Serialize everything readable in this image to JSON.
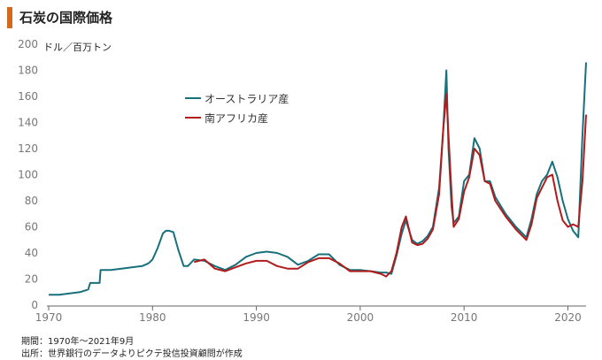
{
  "header": {
    "title": "石炭の国際価格",
    "unit": "ドル／百万トン"
  },
  "legend": [
    {
      "name": "オーストラリア産",
      "color": "#17707a"
    },
    {
      "name": "南アフリカ産",
      "color": "#b31b1b"
    }
  ],
  "footnotes": {
    "period": "期間：1970年～2021年9月",
    "source": "出所：世界銀行のデータよりピクテ投信投資顧問が作成"
  },
  "chart_data": {
    "type": "line",
    "title": "石炭の国際価格",
    "ylabel": "ドル／百万トン",
    "xlim": [
      1970,
      2021.75
    ],
    "ylim": [
      0,
      200
    ],
    "x_ticks": [
      1970,
      1980,
      1990,
      2000,
      2010,
      2020
    ],
    "y_ticks": [
      0,
      20,
      40,
      60,
      80,
      100,
      120,
      140,
      160,
      180,
      200
    ],
    "grid": false,
    "legend_position": "top-center",
    "series": [
      {
        "name": "オーストラリア産",
        "color": "#17707a",
        "x": [
          1970,
          1971,
          1972,
          1973,
          1973.8,
          1974,
          1974.9,
          1975,
          1976,
          1977,
          1978,
          1979,
          1979.6,
          1980,
          1980.5,
          1981,
          1981.3,
          1981.6,
          1982,
          1982.5,
          1983,
          1983.4,
          1984,
          1985,
          1986,
          1987,
          1988,
          1989,
          1990,
          1991,
          1992,
          1993,
          1994,
          1995,
          1996,
          1997,
          1998,
          1999,
          2000,
          2001,
          2002,
          2002.5,
          2003,
          2003.5,
          2004,
          2004.4,
          2005,
          2005.5,
          2006,
          2006.5,
          2007,
          2007.6,
          2008,
          2008.3,
          2008.5,
          2008.8,
          2009,
          2009.5,
          2010,
          2010.5,
          2011,
          2011.5,
          2012,
          2012.5,
          2013,
          2014,
          2015,
          2016,
          2016.5,
          2017,
          2017.5,
          2018,
          2018.5,
          2019,
          2019.5,
          2020,
          2020.5,
          2021,
          2021.4,
          2021.75
        ],
        "values": [
          8,
          8,
          9,
          10,
          12,
          17,
          17,
          27,
          27,
          28,
          29,
          30,
          32,
          35,
          44,
          55,
          57,
          57,
          56,
          42,
          30,
          30,
          35,
          34,
          30,
          27,
          31,
          37,
          40,
          41,
          40,
          37,
          31,
          34,
          39,
          39,
          31,
          27,
          27,
          26,
          25,
          25,
          24,
          38,
          55,
          65,
          50,
          47,
          49,
          53,
          60,
          90,
          135,
          180,
          120,
          75,
          63,
          68,
          95,
          100,
          128,
          120,
          95,
          95,
          83,
          70,
          60,
          52,
          66,
          85,
          95,
          100,
          110,
          98,
          80,
          66,
          57,
          52,
          130,
          186
        ]
      },
      {
        "name": "南アフリカ産",
        "color": "#b31b1b",
        "x": [
          1984,
          1985,
          1986,
          1987,
          1988,
          1989,
          1990,
          1991,
          1992,
          1993,
          1994,
          1995,
          1996,
          1997,
          1998,
          1999,
          2000,
          2001,
          2002,
          2002.5,
          2003,
          2003.5,
          2004,
          2004.4,
          2005,
          2005.5,
          2006,
          2006.5,
          2007,
          2007.6,
          2008,
          2008.3,
          2008.5,
          2008.8,
          2009,
          2009.5,
          2010,
          2010.5,
          2011,
          2011.5,
          2012,
          2012.5,
          2013,
          2014,
          2015,
          2016,
          2016.5,
          2017,
          2017.5,
          2018,
          2018.5,
          2019,
          2019.5,
          2020,
          2020.5,
          2021,
          2021.4,
          2021.75
        ],
        "values": [
          33,
          35,
          28,
          26,
          29,
          32,
          34,
          34,
          30,
          28,
          28,
          33,
          36,
          36,
          32,
          26,
          26,
          26,
          24,
          22,
          26,
          40,
          60,
          68,
          48,
          46,
          47,
          51,
          58,
          85,
          135,
          162,
          130,
          85,
          60,
          66,
          87,
          98,
          120,
          115,
          95,
          93,
          80,
          68,
          58,
          50,
          62,
          82,
          90,
          98,
          100,
          80,
          65,
          60,
          62,
          60,
          95,
          146
        ]
      }
    ]
  }
}
